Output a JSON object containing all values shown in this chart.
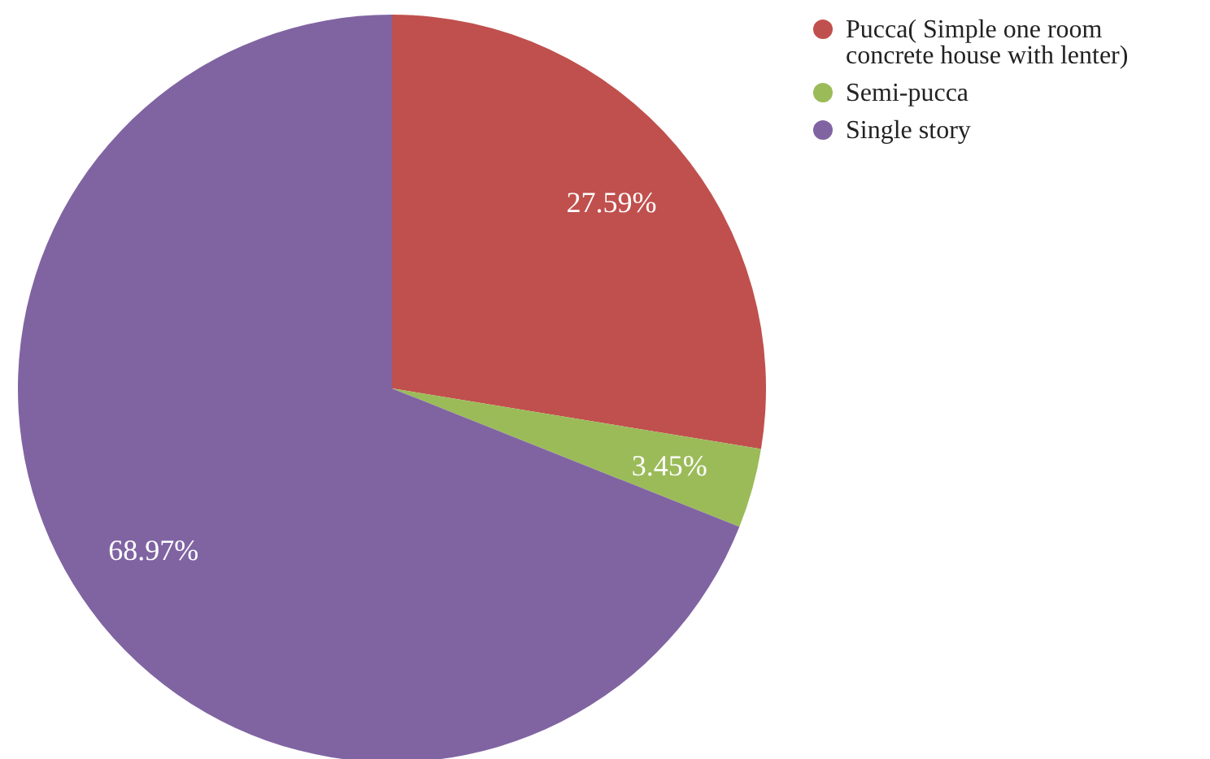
{
  "chart_data": {
    "type": "pie",
    "categories": [
      "Pucca( Simple one room concrete house with lenter)",
      "Semi-pucca",
      "Single story"
    ],
    "values": [
      27.59,
      3.45,
      68.97
    ],
    "colors": [
      "#c0504d",
      "#9bbb59",
      "#8064a2"
    ],
    "value_labels": [
      "27.59%",
      "3.45%",
      "68.97%"
    ],
    "legend": "top right"
  }
}
